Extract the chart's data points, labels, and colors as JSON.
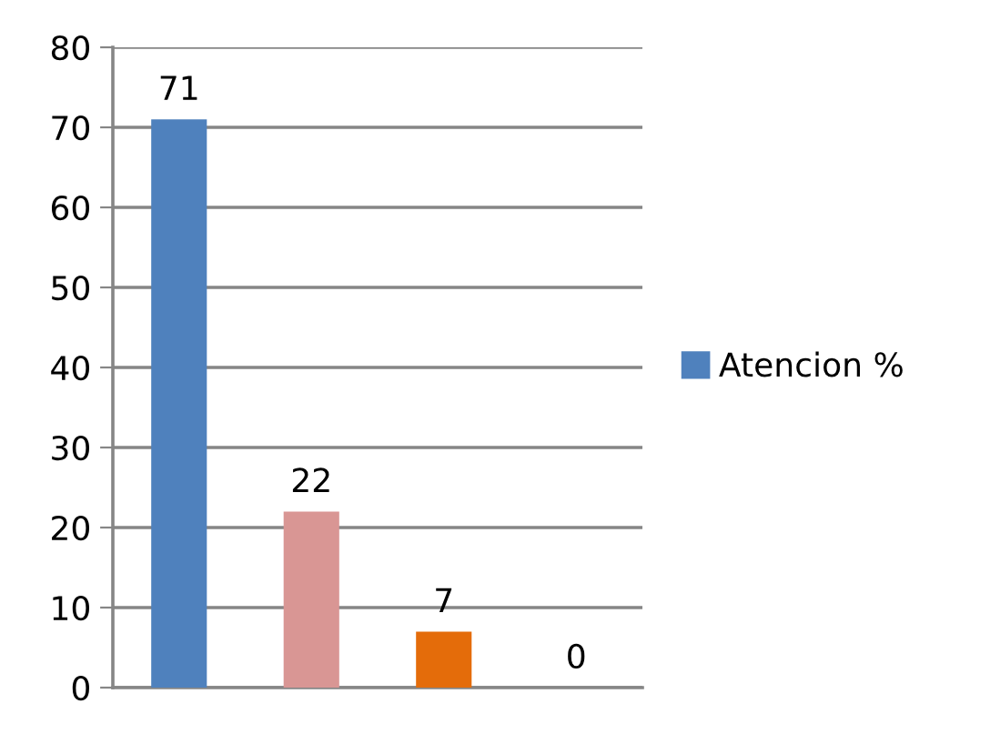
{
  "chart_data": {
    "type": "bar",
    "categories": [
      null,
      null,
      null,
      null
    ],
    "series": [
      {
        "name": "Atencion %",
        "color": "#4f81bd",
        "colors": [
          "#4f81bd",
          "#d99694",
          "#e46c0a",
          "#4f81bd"
        ],
        "values": [
          71,
          22,
          7,
          0
        ]
      }
    ],
    "ylim": [
      0,
      80
    ],
    "yticks": [
      0,
      10,
      20,
      30,
      40,
      50,
      60,
      70,
      80
    ],
    "grid": "y",
    "legend": "right",
    "data_labels": true
  }
}
